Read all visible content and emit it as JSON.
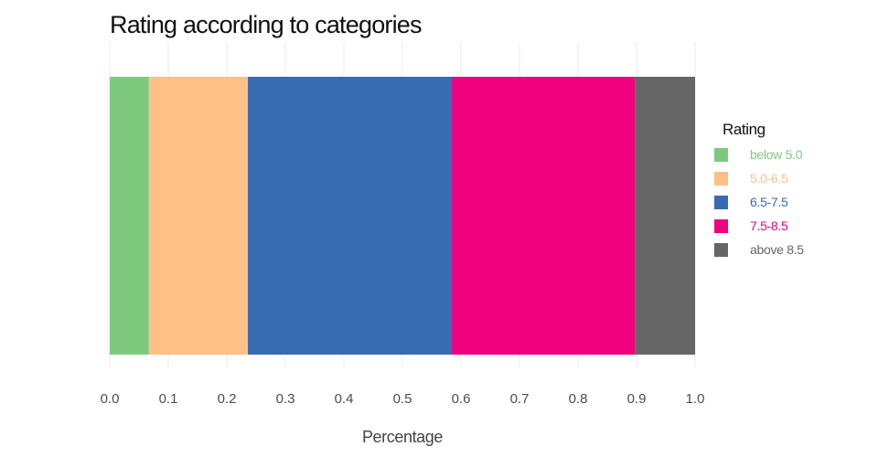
{
  "chart_data": {
    "type": "bar",
    "orientation": "horizontal",
    "stacked": true,
    "title": "Rating according to categories",
    "xlabel": "Percentage",
    "ylabel": "",
    "xlim": [
      0,
      1
    ],
    "xticks": [
      "0.0",
      "0.1",
      "0.2",
      "0.3",
      "0.4",
      "0.5",
      "0.6",
      "0.7",
      "0.8",
      "0.9",
      "1.0"
    ],
    "grid": true,
    "legend_title": "Rating",
    "legend_position": "right",
    "series": [
      {
        "name": "below 5.0",
        "value": 0.067,
        "color": "#7fc97f"
      },
      {
        "name": "5.0-6.5",
        "value": 0.169,
        "color": "#fdc086"
      },
      {
        "name": "6.5-7.5",
        "value": 0.347,
        "color": "#386cb0"
      },
      {
        "name": "7.5-8.5",
        "value": 0.314,
        "color": "#f0027f"
      },
      {
        "name": "above 8.5",
        "value": 0.103,
        "color": "#666666"
      }
    ]
  }
}
